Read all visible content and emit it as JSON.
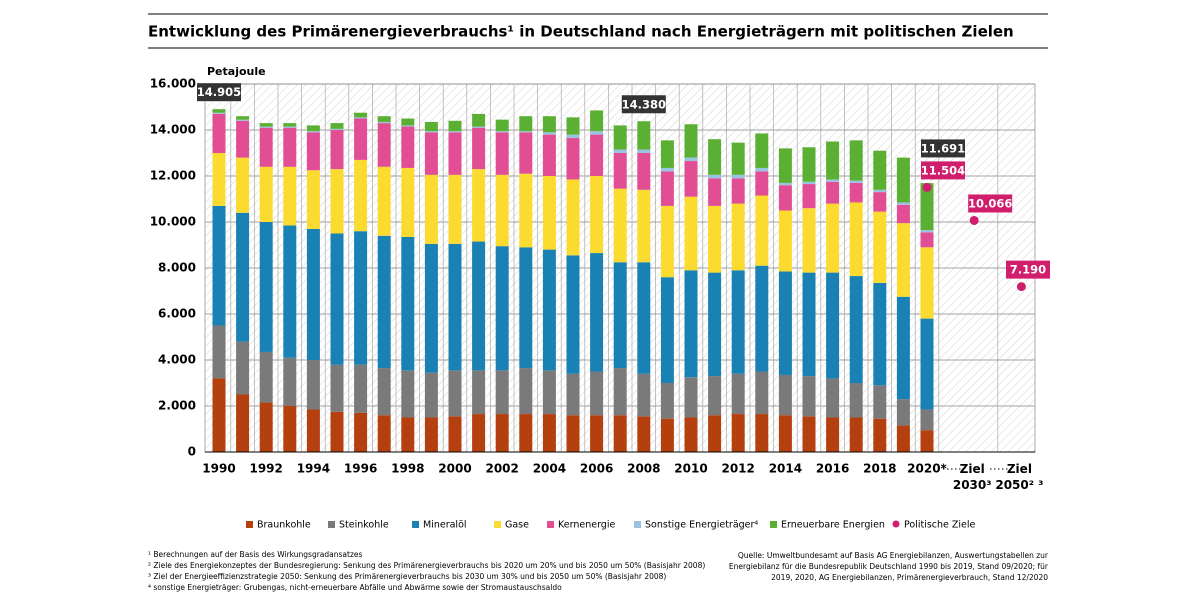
{
  "chart_data": {
    "type": "stacked_bar",
    "title": "Entwicklung des Primärenergieverbrauchs¹ in Deutschland nach Energieträgern mit politischen Zielen",
    "y_label": "Petajoule",
    "categories": [
      "1990",
      null,
      "1992",
      null,
      "1994",
      null,
      "1996",
      null,
      "1998",
      null,
      "2000",
      null,
      "2002",
      null,
      "2004",
      null,
      "2006",
      null,
      "2008",
      null,
      "2010",
      null,
      "2012",
      null,
      "2014",
      null,
      "2016",
      null,
      "2018",
      null,
      "2020*",
      "Ziel 2030³",
      "Ziel 2050² ³"
    ],
    "ylim": [
      0,
      16000
    ],
    "yticks": [
      0,
      {
        "value": 2000,
        "label": "2.000"
      },
      {
        "value": 4000,
        "label": "4.000"
      },
      {
        "value": 6000,
        "label": "6.000"
      },
      {
        "value": 8000,
        "label": "8.000"
      },
      {
        "value": 10000,
        "label": "10.000"
      },
      {
        "value": 12000,
        "label": "12.000"
      },
      {
        "value": 14000,
        "label": "14.000"
      },
      {
        "value": 16000,
        "label": "16.000"
      }
    ],
    "grid": true,
    "series": [
      {
        "name": "Braunkohle",
        "color": "#b5400f",
        "values": [
          3200,
          2500,
          2150,
          2000,
          1850,
          1750,
          1700,
          1600,
          1500,
          1500,
          1550,
          1650,
          1650,
          1650,
          1650,
          1600,
          1600,
          1600,
          1550,
          1450,
          1500,
          1600,
          1650,
          1650,
          1600,
          1550,
          1500,
          1500,
          1450,
          1150,
          950,
          null,
          null
        ]
      },
      {
        "name": "Steinkohle",
        "color": "#7a7a7a",
        "values": [
          2300,
          2300,
          2200,
          2100,
          2150,
          2050,
          2100,
          2050,
          2050,
          1950,
          2000,
          1900,
          1900,
          2000,
          1900,
          1800,
          1900,
          2050,
          1850,
          1550,
          1750,
          1700,
          1750,
          1850,
          1750,
          1750,
          1700,
          1500,
          1450,
          1150,
          900,
          null,
          null
        ]
      },
      {
        "name": "Mineralöl",
        "color": "#1a81b5",
        "values": [
          5200,
          5600,
          5650,
          5750,
          5700,
          5700,
          5800,
          5750,
          5800,
          5600,
          5500,
          5600,
          5400,
          5250,
          5250,
          5150,
          5150,
          4600,
          4850,
          4600,
          4650,
          4500,
          4500,
          4600,
          4500,
          4500,
          4600,
          4650,
          4450,
          4450,
          3950,
          null,
          null
        ]
      },
      {
        "name": "Gase",
        "color": "#fbdb30",
        "values": [
          2300,
          2400,
          2400,
          2550,
          2550,
          2800,
          3100,
          3000,
          3000,
          3000,
          3000,
          3150,
          3100,
          3200,
          3200,
          3300,
          3350,
          3200,
          3150,
          3100,
          3200,
          2900,
          2900,
          3050,
          2650,
          2800,
          3000,
          3200,
          3100,
          3200,
          3100,
          null,
          null
        ]
      },
      {
        "name": "Kernenergie",
        "color": "#e24e93",
        "values": [
          1700,
          1600,
          1700,
          1700,
          1650,
          1700,
          1800,
          1900,
          1800,
          1850,
          1850,
          1800,
          1850,
          1800,
          1800,
          1800,
          1800,
          1550,
          1600,
          1500,
          1550,
          1200,
          1100,
          1050,
          1100,
          1050,
          950,
          850,
          850,
          800,
          650,
          null,
          null
        ]
      },
      {
        "name": "Sonstige Energieträger⁴",
        "color": "#9ac3e2",
        "values": [
          50,
          50,
          50,
          50,
          50,
          50,
          50,
          50,
          50,
          50,
          50,
          50,
          50,
          50,
          100,
          150,
          150,
          150,
          150,
          150,
          150,
          150,
          150,
          150,
          100,
          100,
          100,
          100,
          100,
          100,
          100,
          null,
          null
        ]
      },
      {
        "name": "Erneuerbare Energien",
        "color": "#5bb033",
        "values": [
          155,
          150,
          150,
          150,
          250,
          250,
          200,
          250,
          300,
          400,
          450,
          550,
          500,
          650,
          700,
          750,
          900,
          1050,
          1230,
          1200,
          1450,
          1550,
          1400,
          1500,
          1500,
          1500,
          1650,
          1750,
          1700,
          1950,
          2040,
          null,
          null
        ]
      },
      {
        "name": "Politische Ziele",
        "color": "#d01d6c",
        "type": "scatter",
        "values": [
          null,
          null,
          null,
          null,
          null,
          null,
          null,
          null,
          null,
          null,
          null,
          null,
          null,
          null,
          null,
          null,
          null,
          null,
          null,
          null,
          null,
          null,
          null,
          null,
          null,
          null,
          null,
          null,
          null,
          null,
          11504,
          10066,
          7190
        ],
        "value_labels": [
          null,
          null,
          null,
          null,
          null,
          null,
          null,
          null,
          null,
          null,
          null,
          null,
          null,
          null,
          null,
          null,
          null,
          null,
          null,
          null,
          null,
          null,
          null,
          null,
          null,
          null,
          null,
          null,
          null,
          null,
          "11.504",
          "10.066",
          "7.190"
        ]
      }
    ],
    "annotations": [
      {
        "category": "1990",
        "value": 14905,
        "label": "14.905"
      },
      {
        "category": "2008",
        "value": 14380,
        "label": "14.380"
      },
      {
        "category": "2020*",
        "value": 11691,
        "label": "11.691"
      }
    ],
    "footnotes": [
      "¹ Berechnungen auf der Basis des Wirkungsgradansatzes",
      "² Ziele des Energiekonzeptes der Bundesregierung: Senkung des Primärenergieverbrauchs bis 2020 um 20% und bis 2050 um 50% (Basisjahr 2008)",
      "³ Ziel der Energieeffizienzstrategie 2050: Senkung des Primärenergieverbrauchs bis 2030 um 30% und bis 2050 um 50% (Basisjahr 2008)",
      "⁴ sonstige Energieträger: Grubengas, nicht-erneuerbare Abfälle und Abwärme sowie der Stromaustauschsaldo"
    ],
    "source": [
      "Quelle: Umweltbundesamt auf Basis AG Energiebilanzen, Auswertungstabellen zur",
      "Energiebilanz für die Bundesrepublik Deutschland 1990 bis 2019, Stand 09/2020; für",
      "2019, 2020, AG Energiebilanzen, Primärenergieverbrauch, Stand 12/2020"
    ]
  }
}
